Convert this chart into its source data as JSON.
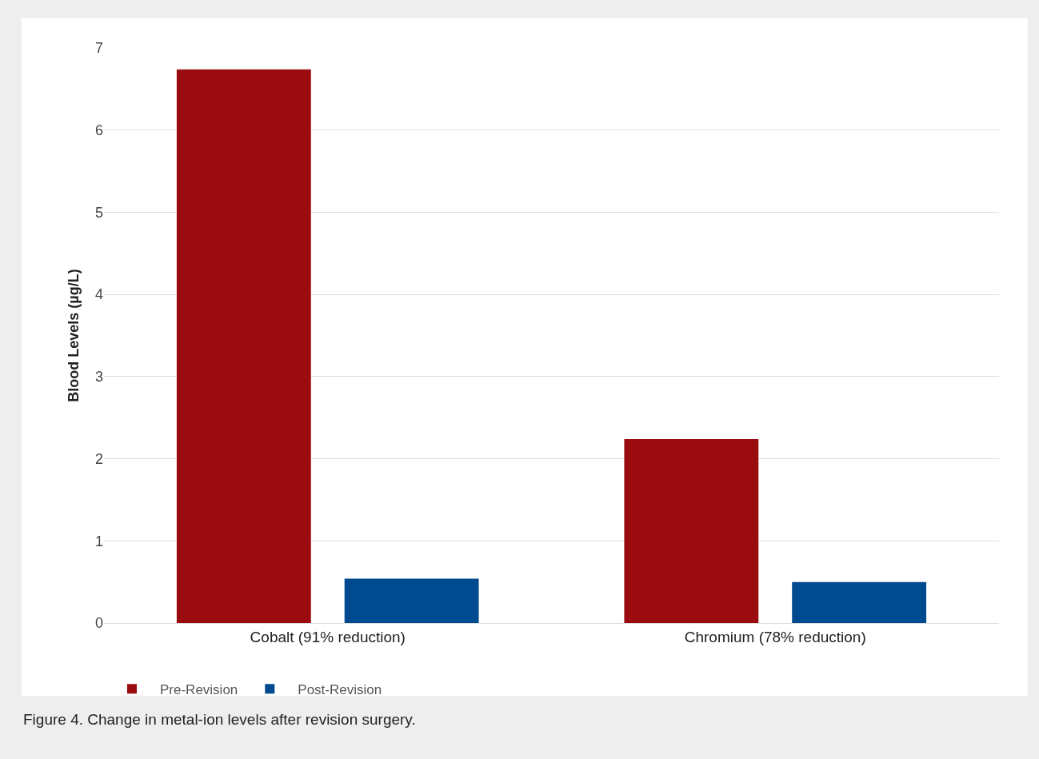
{
  "chart_data": {
    "type": "bar",
    "ylabel": "Blood Levels (µg/L)",
    "categories": [
      "Cobalt (91% reduction)",
      "Chromium (78% reduction)"
    ],
    "series": [
      {
        "name": "Pre-Revision",
        "color": "#9b0c10",
        "values": [
          6.74,
          2.24
        ]
      },
      {
        "name": "Post-Revision",
        "color": "#004a8f",
        "values": [
          0.54,
          0.5
        ]
      }
    ],
    "ylim": [
      0,
      7
    ],
    "yticks": [
      0,
      1,
      2,
      3,
      4,
      5,
      6,
      7
    ],
    "grid": "y",
    "legend": "bottom left",
    "annotations": [
      "Figure 4. Change in metal-ion levels after revision surgery."
    ]
  }
}
